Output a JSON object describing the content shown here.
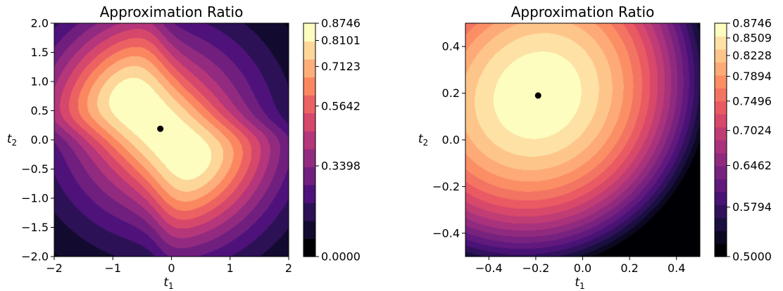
{
  "chart_data": [
    {
      "type": "heatmap",
      "subtype": "filled-contour",
      "colormap": "magma",
      "title": "Approximation Ratio",
      "xlabel": "t",
      "xlabel_sub": "1",
      "ylabel": "t",
      "ylabel_sub": "2",
      "xlim": [
        -2,
        2
      ],
      "ylim": [
        -2,
        2
      ],
      "xticks": [
        -2,
        -1,
        0,
        1,
        2
      ],
      "xtick_labels": [
        "−2",
        "−1",
        "0",
        "1",
        "2"
      ],
      "yticks": [
        -2,
        -1.5,
        -1,
        -0.5,
        0,
        0.5,
        1,
        1.5,
        2
      ],
      "ytick_labels": [
        "−2.0",
        "−1.5",
        "−1.0",
        "−0.5",
        "0.0",
        "0.5",
        "1.0",
        "1.5",
        "2.0"
      ],
      "optimum_point": {
        "x": -0.19,
        "y": 0.19
      },
      "optimum_value": 0.8746,
      "colorbar": {
        "min": 0.0,
        "max": 0.8746,
        "levels": 13,
        "tick_values": [
          0.0,
          0.3398,
          0.5642,
          0.7123,
          0.8101,
          0.8746
        ],
        "tick_labels": [
          "0.0000",
          "0.3398",
          "0.5642",
          "0.7123",
          "0.8101",
          "0.8746"
        ]
      },
      "grid": false
    },
    {
      "type": "heatmap",
      "subtype": "filled-contour",
      "colormap": "magma",
      "title": "Approximation Ratio",
      "xlabel": "t",
      "xlabel_sub": "1",
      "ylabel": "t",
      "ylabel_sub": "2",
      "xlim": [
        -0.5,
        0.5
      ],
      "ylim": [
        -0.5,
        0.5
      ],
      "xticks": [
        -0.4,
        -0.2,
        0,
        0.2,
        0.4
      ],
      "xtick_labels": [
        "−0.4",
        "−0.2",
        "0.0",
        "0.2",
        "0.4"
      ],
      "yticks": [
        -0.4,
        -0.2,
        0,
        0.2,
        0.4
      ],
      "ytick_labels": [
        "−0.4",
        "−0.2",
        "0.0",
        "0.2",
        "0.4"
      ],
      "optimum_point": {
        "x": -0.19,
        "y": 0.19
      },
      "optimum_value": 0.8746,
      "colorbar": {
        "min": 0.5,
        "max": 0.8746,
        "levels": 18,
        "tick_values": [
          0.5,
          0.5794,
          0.6462,
          0.7024,
          0.7496,
          0.7894,
          0.8228,
          0.8509,
          0.8746
        ],
        "tick_labels": [
          "0.5000",
          "0.5794",
          "0.6462",
          "0.7024",
          "0.7496",
          "0.7894",
          "0.8228",
          "0.8509",
          "0.8746"
        ]
      },
      "grid": false
    }
  ]
}
